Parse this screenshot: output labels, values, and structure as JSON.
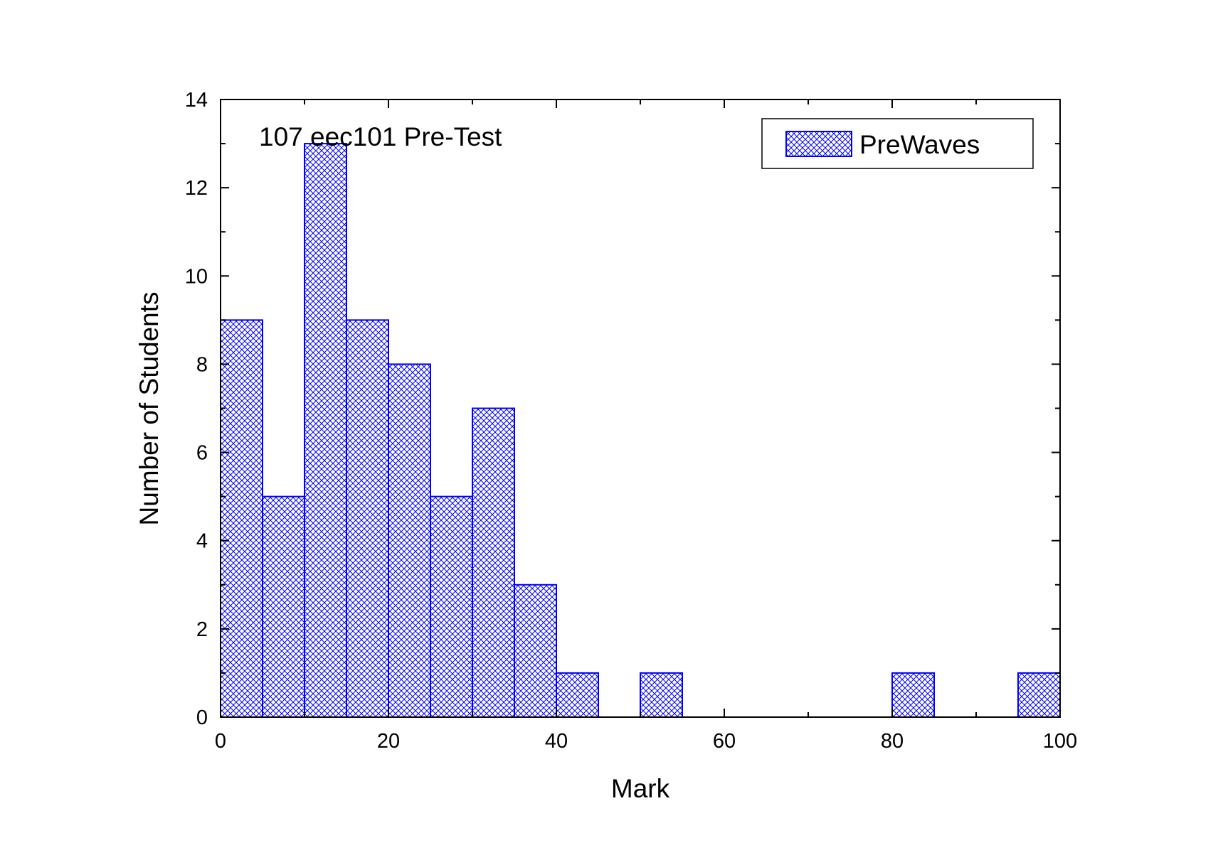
{
  "chart_data": {
    "type": "bar",
    "annotation": "107 eec101 Pre-Test",
    "xlabel": "Mark",
    "ylabel": "Number of Students",
    "xlim": [
      0,
      100
    ],
    "ylim": [
      0,
      14
    ],
    "x_ticks": [
      "0",
      "20",
      "40",
      "60",
      "80",
      "100"
    ],
    "y_ticks": [
      "0",
      "2",
      "4",
      "6",
      "8",
      "10",
      "12",
      "14"
    ],
    "bin_width": 5,
    "series": [
      {
        "name": "PreWaves",
        "color": "#0000ff",
        "fill_pattern": "crosshatch",
        "bins": [
          {
            "x0": 0,
            "x1": 5,
            "count": 9
          },
          {
            "x0": 5,
            "x1": 10,
            "count": 5
          },
          {
            "x0": 10,
            "x1": 15,
            "count": 13
          },
          {
            "x0": 15,
            "x1": 20,
            "count": 9
          },
          {
            "x0": 20,
            "x1": 25,
            "count": 8
          },
          {
            "x0": 25,
            "x1": 30,
            "count": 5
          },
          {
            "x0": 30,
            "x1": 35,
            "count": 7
          },
          {
            "x0": 35,
            "x1": 40,
            "count": 3
          },
          {
            "x0": 40,
            "x1": 45,
            "count": 1
          },
          {
            "x0": 45,
            "x1": 50,
            "count": 0
          },
          {
            "x0": 50,
            "x1": 55,
            "count": 1
          },
          {
            "x0": 55,
            "x1": 60,
            "count": 0
          },
          {
            "x0": 60,
            "x1": 65,
            "count": 0
          },
          {
            "x0": 65,
            "x1": 70,
            "count": 0
          },
          {
            "x0": 70,
            "x1": 75,
            "count": 0
          },
          {
            "x0": 75,
            "x1": 80,
            "count": 0
          },
          {
            "x0": 80,
            "x1": 85,
            "count": 1
          },
          {
            "x0": 85,
            "x1": 90,
            "count": 0
          },
          {
            "x0": 90,
            "x1": 95,
            "count": 0
          },
          {
            "x0": 95,
            "x1": 100,
            "count": 1
          }
        ]
      }
    ],
    "legend": {
      "position": "top-right",
      "entries": [
        "PreWaves"
      ]
    },
    "grid": false
  }
}
